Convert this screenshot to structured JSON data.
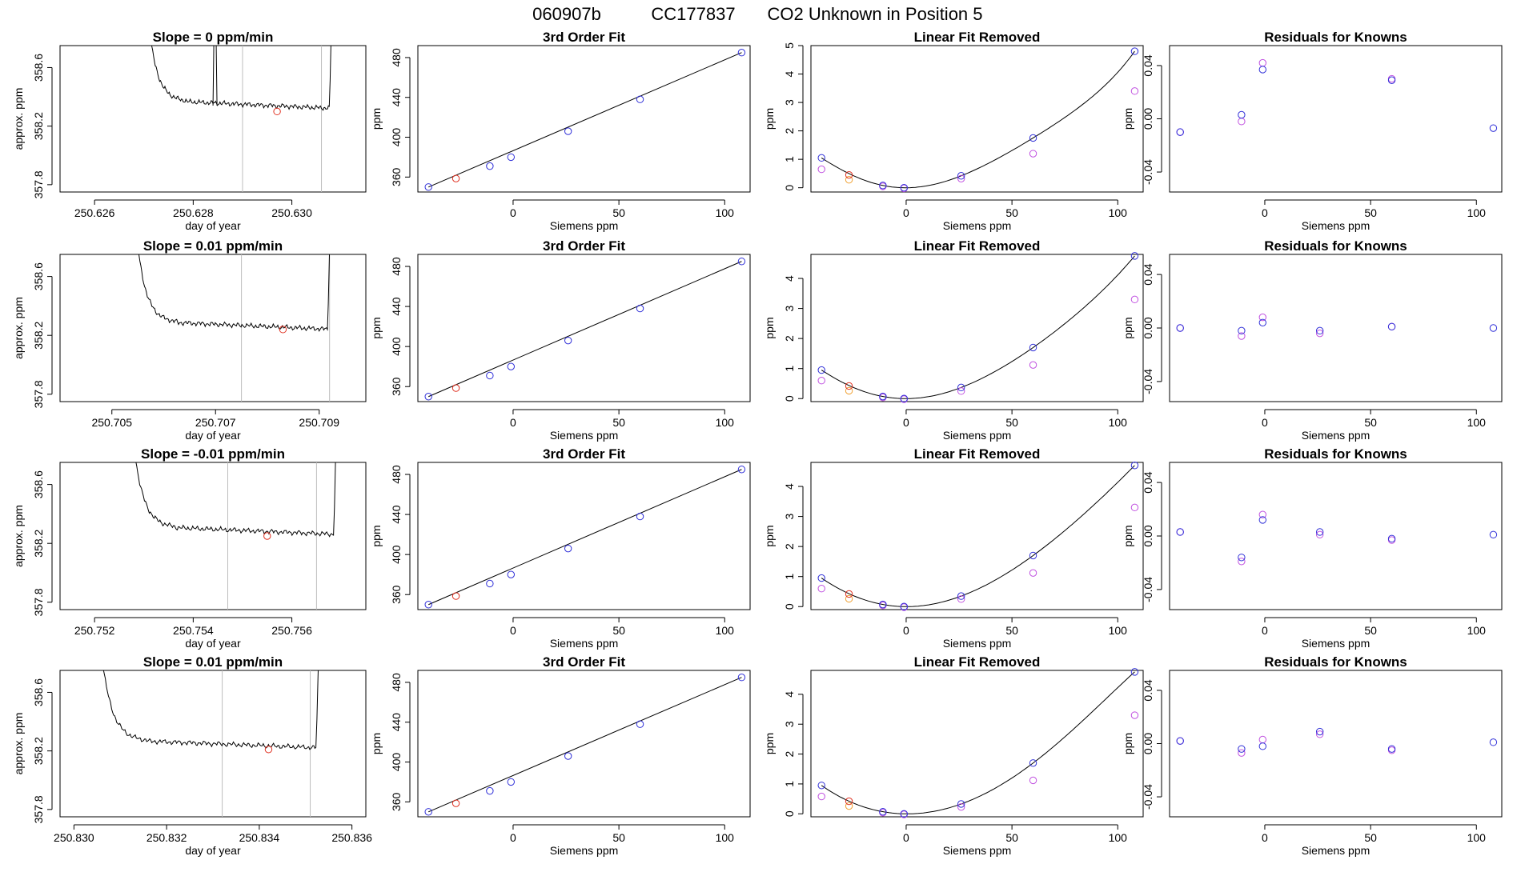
{
  "header": {
    "title_parts": [
      "060907b",
      "CC177837",
      "CO2 Unknown in Position  5"
    ]
  },
  "colors": {
    "blue": "#3030d8",
    "red": "#e03020",
    "orange": "#f0a030",
    "magenta": "#c050e0",
    "gray": "#bdbdbd"
  },
  "labels": {
    "day_of_year": "day of year",
    "approx_ppm": "approx. ppm",
    "ppm": "ppm",
    "siemens_ppm": "Siemens ppm",
    "fit_title": "3rd Order Fit",
    "linear_title": "Linear Fit Removed",
    "resid_title": "Residuals for Knowns"
  },
  "chart_data": {
    "type": "scatter",
    "rows": [
      {
        "slope_title": "Slope =  0  ppm/min",
        "trace": {
          "xlim": [
            250.6253,
            250.6315
          ],
          "ylim": [
            357.75,
            358.75
          ],
          "xticks": [
            250.626,
            250.628,
            250.63
          ],
          "xtick_labels": [
            "250.626",
            "250.628",
            "250.630"
          ],
          "t_start": 250.627,
          "t_end": 250.6309,
          "plateau": 358.32,
          "vlines": [
            250.629,
            250.6306
          ],
          "spike_at": 250.62845,
          "marker": [
            250.6297,
            358.3
          ]
        },
        "fit_blue": [
          [
            -40,
            350
          ],
          [
            -11,
            371
          ],
          [
            -1,
            380
          ],
          [
            26,
            406
          ],
          [
            60,
            438
          ],
          [
            108,
            485
          ]
        ],
        "fit_red": [
          [
            -27,
            358.5
          ]
        ],
        "lin_blue": [
          [
            -40,
            1.05
          ],
          [
            -11,
            0.08
          ],
          [
            -1,
            0.0
          ],
          [
            26,
            0.42
          ],
          [
            60,
            1.75
          ],
          [
            108,
            4.8
          ]
        ],
        "lin_magenta": [
          [
            -40,
            0.65
          ],
          [
            -11,
            0.05
          ],
          [
            -1,
            -0.02
          ],
          [
            26,
            0.32
          ],
          [
            60,
            1.2
          ],
          [
            108,
            3.4
          ]
        ],
        "lin_red": [
          [
            -27,
            0.45
          ]
        ],
        "lin_orange": [
          [
            -27,
            0.28
          ]
        ],
        "lin_ylim": [
          -0.15,
          5.0
        ],
        "lin_yticks": [
          0,
          1,
          2,
          3,
          4,
          5
        ],
        "res_blue": [
          [
            -40,
            -0.01
          ],
          [
            -11,
            0.003
          ],
          [
            -1,
            0.037
          ],
          [
            60,
            0.029
          ],
          [
            108,
            -0.007
          ]
        ],
        "res_magenta": [
          [
            -40,
            -0.01
          ],
          [
            -11,
            -0.002
          ],
          [
            -1,
            0.042
          ],
          [
            60,
            0.03
          ]
        ]
      },
      {
        "slope_title": "Slope =  0.01  ppm/min",
        "trace": {
          "xlim": [
            250.704,
            250.7099
          ],
          "ylim": [
            357.75,
            358.75
          ],
          "xticks": [
            250.705,
            250.707,
            250.709
          ],
          "xtick_labels": [
            "250.705",
            "250.707",
            "250.709"
          ],
          "t_start": 250.7054,
          "t_end": 250.7093,
          "plateau": 358.24,
          "vlines": [
            250.7075,
            250.7092
          ],
          "spike_at": null,
          "marker": [
            250.7083,
            358.24
          ]
        },
        "fit_blue": [
          [
            -40,
            350
          ],
          [
            -11,
            371
          ],
          [
            -1,
            380
          ],
          [
            26,
            406
          ],
          [
            60,
            438
          ],
          [
            108,
            485
          ]
        ],
        "fit_red": [
          [
            -27,
            358.5
          ]
        ],
        "lin_blue": [
          [
            -40,
            0.95
          ],
          [
            -11,
            0.07
          ],
          [
            -1,
            0.0
          ],
          [
            26,
            0.37
          ],
          [
            60,
            1.7
          ],
          [
            108,
            4.75
          ]
        ],
        "lin_magenta": [
          [
            -40,
            0.6
          ],
          [
            -11,
            0.04
          ],
          [
            -1,
            -0.02
          ],
          [
            26,
            0.25
          ],
          [
            60,
            1.12
          ],
          [
            108,
            3.3
          ]
        ],
        "lin_red": [
          [
            -27,
            0.42
          ]
        ],
        "lin_orange": [
          [
            -27,
            0.26
          ]
        ],
        "lin_ylim": [
          -0.1,
          4.8
        ],
        "lin_yticks": [
          0,
          1,
          2,
          3,
          4
        ],
        "res_blue": [
          [
            -40,
            0.0
          ],
          [
            -11,
            -0.002
          ],
          [
            -1,
            0.004
          ],
          [
            26,
            -0.002
          ],
          [
            60,
            0.001
          ],
          [
            108,
            0.0
          ]
        ],
        "res_magenta": [
          [
            -40,
            0.0
          ],
          [
            -11,
            -0.006
          ],
          [
            -1,
            0.008
          ],
          [
            26,
            -0.004
          ],
          [
            60,
            0.001
          ]
        ]
      },
      {
        "slope_title": "Slope =  -0.01  ppm/min",
        "trace": {
          "xlim": [
            250.7513,
            250.7575
          ],
          "ylim": [
            357.75,
            358.75
          ],
          "xticks": [
            250.752,
            250.754,
            250.756
          ],
          "xtick_labels": [
            "250.752",
            "250.754",
            "250.756"
          ],
          "t_start": 250.7527,
          "t_end": 250.757,
          "plateau": 358.26,
          "vlines": [
            250.7547,
            250.7565
          ],
          "spike_at": null,
          "marker": [
            250.7555,
            358.25
          ]
        },
        "fit_blue": [
          [
            -40,
            350
          ],
          [
            -11,
            371
          ],
          [
            -1,
            380
          ],
          [
            26,
            406
          ],
          [
            60,
            438
          ],
          [
            108,
            485
          ]
        ],
        "fit_red": [
          [
            -27,
            358.5
          ]
        ],
        "lin_blue": [
          [
            -40,
            0.95
          ],
          [
            -11,
            0.07
          ],
          [
            -1,
            0.0
          ],
          [
            26,
            0.35
          ],
          [
            60,
            1.7
          ],
          [
            108,
            4.7
          ]
        ],
        "lin_magenta": [
          [
            -40,
            0.6
          ],
          [
            -11,
            0.04
          ],
          [
            -1,
            -0.02
          ],
          [
            26,
            0.25
          ],
          [
            60,
            1.12
          ],
          [
            108,
            3.3
          ]
        ],
        "lin_red": [
          [
            -27,
            0.42
          ]
        ],
        "lin_orange": [
          [
            -27,
            0.26
          ]
        ],
        "lin_ylim": [
          -0.1,
          4.8
        ],
        "lin_yticks": [
          0,
          1,
          2,
          3,
          4
        ],
        "res_blue": [
          [
            -40,
            0.003
          ],
          [
            -11,
            -0.016
          ],
          [
            -1,
            0.012
          ],
          [
            26,
            0.003
          ],
          [
            60,
            -0.002
          ],
          [
            108,
            0.001
          ]
        ],
        "res_magenta": [
          [
            -40,
            0.003
          ],
          [
            -11,
            -0.019
          ],
          [
            -1,
            0.016
          ],
          [
            26,
            0.001
          ],
          [
            60,
            -0.003
          ]
        ]
      },
      {
        "slope_title": "Slope =  0.01  ppm/min",
        "trace": {
          "xlim": [
            250.8297,
            250.8363
          ],
          "ylim": [
            357.75,
            358.75
          ],
          "xticks": [
            250.83,
            250.832,
            250.834,
            250.836
          ],
          "xtick_labels": [
            "250.830",
            "250.832",
            "250.834",
            "250.836"
          ],
          "t_start": 250.8305,
          "t_end": 250.8354,
          "plateau": 358.22,
          "vlines": [
            250.8332,
            250.8351
          ],
          "spike_at": null,
          "marker": [
            250.8342,
            358.21
          ]
        },
        "fit_blue": [
          [
            -40,
            350
          ],
          [
            -11,
            371
          ],
          [
            -1,
            380
          ],
          [
            26,
            406
          ],
          [
            60,
            438
          ],
          [
            108,
            485
          ]
        ],
        "fit_red": [
          [
            -27,
            358.5
          ]
        ],
        "lin_blue": [
          [
            -40,
            0.95
          ],
          [
            -11,
            0.07
          ],
          [
            -1,
            0.0
          ],
          [
            26,
            0.33
          ],
          [
            60,
            1.7
          ],
          [
            108,
            4.75
          ]
        ],
        "lin_magenta": [
          [
            -40,
            0.58
          ],
          [
            -11,
            0.04
          ],
          [
            -1,
            -0.02
          ],
          [
            26,
            0.23
          ],
          [
            60,
            1.12
          ],
          [
            108,
            3.3
          ]
        ],
        "lin_red": [
          [
            -27,
            0.42
          ]
        ],
        "lin_orange": [
          [
            -27,
            0.26
          ]
        ],
        "lin_ylim": [
          -0.1,
          4.8
        ],
        "lin_yticks": [
          0,
          1,
          2,
          3,
          4
        ],
        "res_blue": [
          [
            -40,
            0.002
          ],
          [
            -11,
            -0.004
          ],
          [
            -1,
            -0.002
          ],
          [
            26,
            0.009
          ],
          [
            60,
            -0.004
          ],
          [
            108,
            0.001
          ]
        ],
        "res_magenta": [
          [
            -40,
            0.002
          ],
          [
            -11,
            -0.007
          ],
          [
            -1,
            0.003
          ],
          [
            26,
            0.007
          ],
          [
            60,
            -0.005
          ]
        ]
      }
    ],
    "trace_yticks": [
      357.8,
      358.2,
      358.6
    ],
    "trace_ytick_labels": [
      "357.8",
      "358.2",
      "358.6"
    ],
    "fit_xlim": [
      -45,
      112
    ],
    "fit_ylim": [
      345,
      492
    ],
    "fit_xticks": [
      0,
      50,
      100
    ],
    "fit_yticks": [
      360,
      400,
      440,
      480
    ],
    "lin_xlim": [
      -45,
      112
    ],
    "res_xlim": [
      -45,
      112
    ],
    "res_ylim": [
      -0.055,
      0.055
    ],
    "res_xticks": [
      0,
      50,
      100
    ],
    "res_yticks": [
      -0.04,
      0.0,
      0.04
    ],
    "res_ytick_labels": [
      "-0.04",
      "0.00",
      "0.04"
    ]
  }
}
